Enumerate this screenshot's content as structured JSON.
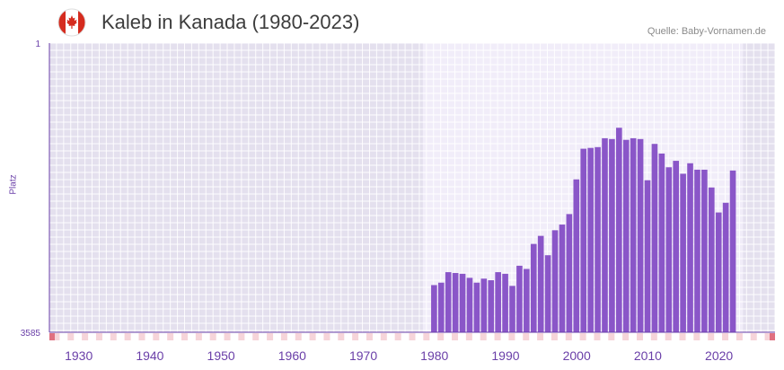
{
  "header": {
    "title": "Kaleb in Kanada (1980-2023)",
    "source": "Quelle: Baby-Vornamen.de",
    "flag_icon": "canada-flag-icon"
  },
  "colors": {
    "bar": "#8a56c8",
    "axis_text": "#6a3fa8",
    "tick_mark": "#e07080",
    "bg_outside": "#e4e0ee",
    "bg_inside": "#f1edf9",
    "grid": "#ffffff"
  },
  "chart_data": {
    "type": "bar",
    "title": "Kaleb in Kanada (1980-2023)",
    "xlabel": "",
    "ylabel": "Platz",
    "y_inverted": true,
    "ylim": [
      1,
      3585
    ],
    "ytick_labels": [
      "1",
      "3585"
    ],
    "xlim": [
      1926,
      2028
    ],
    "xtick_labels": [
      "1930",
      "1940",
      "1950",
      "1960",
      "1970",
      "1980",
      "1990",
      "2000",
      "2010",
      "2020"
    ],
    "xtick_values": [
      1930,
      1940,
      1950,
      1960,
      1970,
      1980,
      1990,
      2000,
      2010,
      2020
    ],
    "highlight_range": [
      1978.5,
      2023.5
    ],
    "categories": [
      1980,
      1981,
      1982,
      1983,
      1984,
      1985,
      1986,
      1987,
      1988,
      1989,
      1990,
      1991,
      1992,
      1993,
      1994,
      1995,
      1996,
      1997,
      1998,
      1999,
      2000,
      2001,
      2002,
      2003,
      2004,
      2005,
      2006,
      2007,
      2008,
      2009,
      2010,
      2011,
      2012,
      2013,
      2014,
      2015,
      2016,
      2017,
      2018,
      2019,
      2020,
      2021,
      2022
    ],
    "values": [
      3000,
      2970,
      2840,
      2850,
      2860,
      2910,
      2970,
      2920,
      2940,
      2840,
      2860,
      3010,
      2760,
      2800,
      2490,
      2390,
      2630,
      2320,
      2250,
      2120,
      1690,
      1310,
      1300,
      1290,
      1180,
      1190,
      1050,
      1200,
      1180,
      1190,
      1700,
      1250,
      1370,
      1540,
      1460,
      1620,
      1490,
      1570,
      1570,
      1790,
      2100,
      1980,
      1580
    ]
  }
}
